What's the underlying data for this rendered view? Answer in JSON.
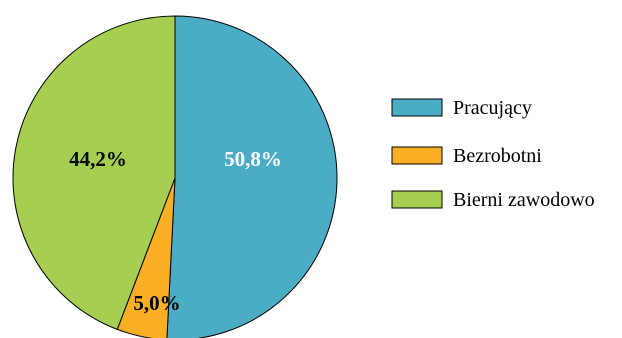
{
  "chart_data": {
    "type": "pie",
    "slices": [
      {
        "name": "Pracujący",
        "value": 50.8,
        "label": "50,8%",
        "color": "#4BACC6",
        "label_color": "#ffffff"
      },
      {
        "name": "Bezrobotni",
        "value": 5.0,
        "label": "5,0%",
        "color": "#F9AE24",
        "label_color": "#000000"
      },
      {
        "name": "Bierni zawodowo",
        "value": 44.2,
        "label": "44,2%",
        "color": "#A6CE50",
        "label_color": "#000000"
      }
    ],
    "start_angle": "12 o'clock",
    "direction": "clockwise",
    "legend": {
      "placement": "right",
      "items": [
        "Pracujący",
        "Bezrobotni",
        "Bierni zawodowo"
      ]
    }
  }
}
